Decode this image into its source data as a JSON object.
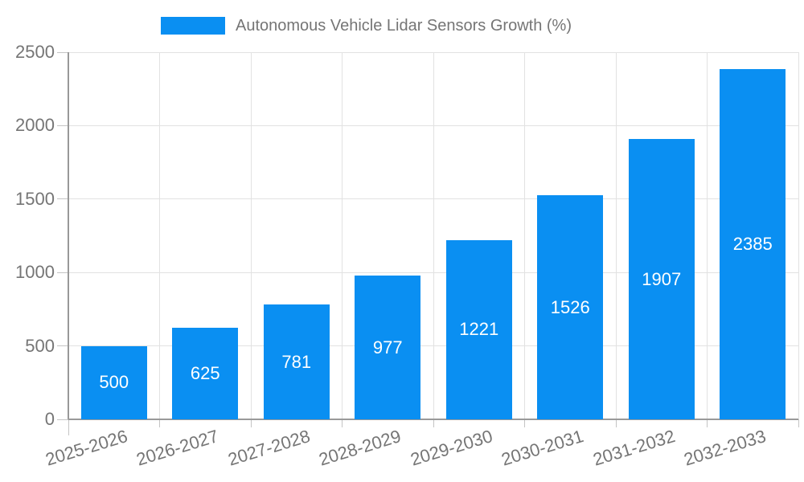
{
  "chart_data": {
    "type": "bar",
    "title": "Autonomous Vehicle Lidar Sensors Growth (%)",
    "legend": {
      "position": "top",
      "entries": [
        {
          "label": "Autonomous Vehicle Lidar Sensors Growth (%)",
          "color": "#0a8ff2"
        }
      ]
    },
    "categories": [
      "2025-2026",
      "2026-2027",
      "2027-2028",
      "2028-2029",
      "2029-2030",
      "2030-2031",
      "2031-2032",
      "2032-2033"
    ],
    "series": [
      {
        "name": "Autonomous Vehicle Lidar Sensors Growth (%)",
        "values": [
          500,
          625,
          781,
          977,
          1221,
          1526,
          1907,
          2385
        ]
      }
    ],
    "bar_value_labels": [
      "500",
      "625",
      "781",
      "977",
      "1221",
      "1526",
      "1907",
      "2385"
    ],
    "xlabel": "",
    "ylabel": "",
    "ylim": [
      0,
      2500
    ],
    "yticks": [
      0,
      500,
      1000,
      1500,
      2000,
      2500
    ],
    "ytick_labels": [
      "0",
      "500",
      "1000",
      "1500",
      "2000",
      "2500"
    ],
    "grid": true,
    "colors": {
      "bar": "#0a8ff2",
      "bar_value_text": "#ffffff",
      "axis_text": "#757575",
      "axis_line": "#999999",
      "gridline": "#e2e2e2",
      "tick": "#c4c4c4",
      "background": "#ffffff"
    }
  }
}
